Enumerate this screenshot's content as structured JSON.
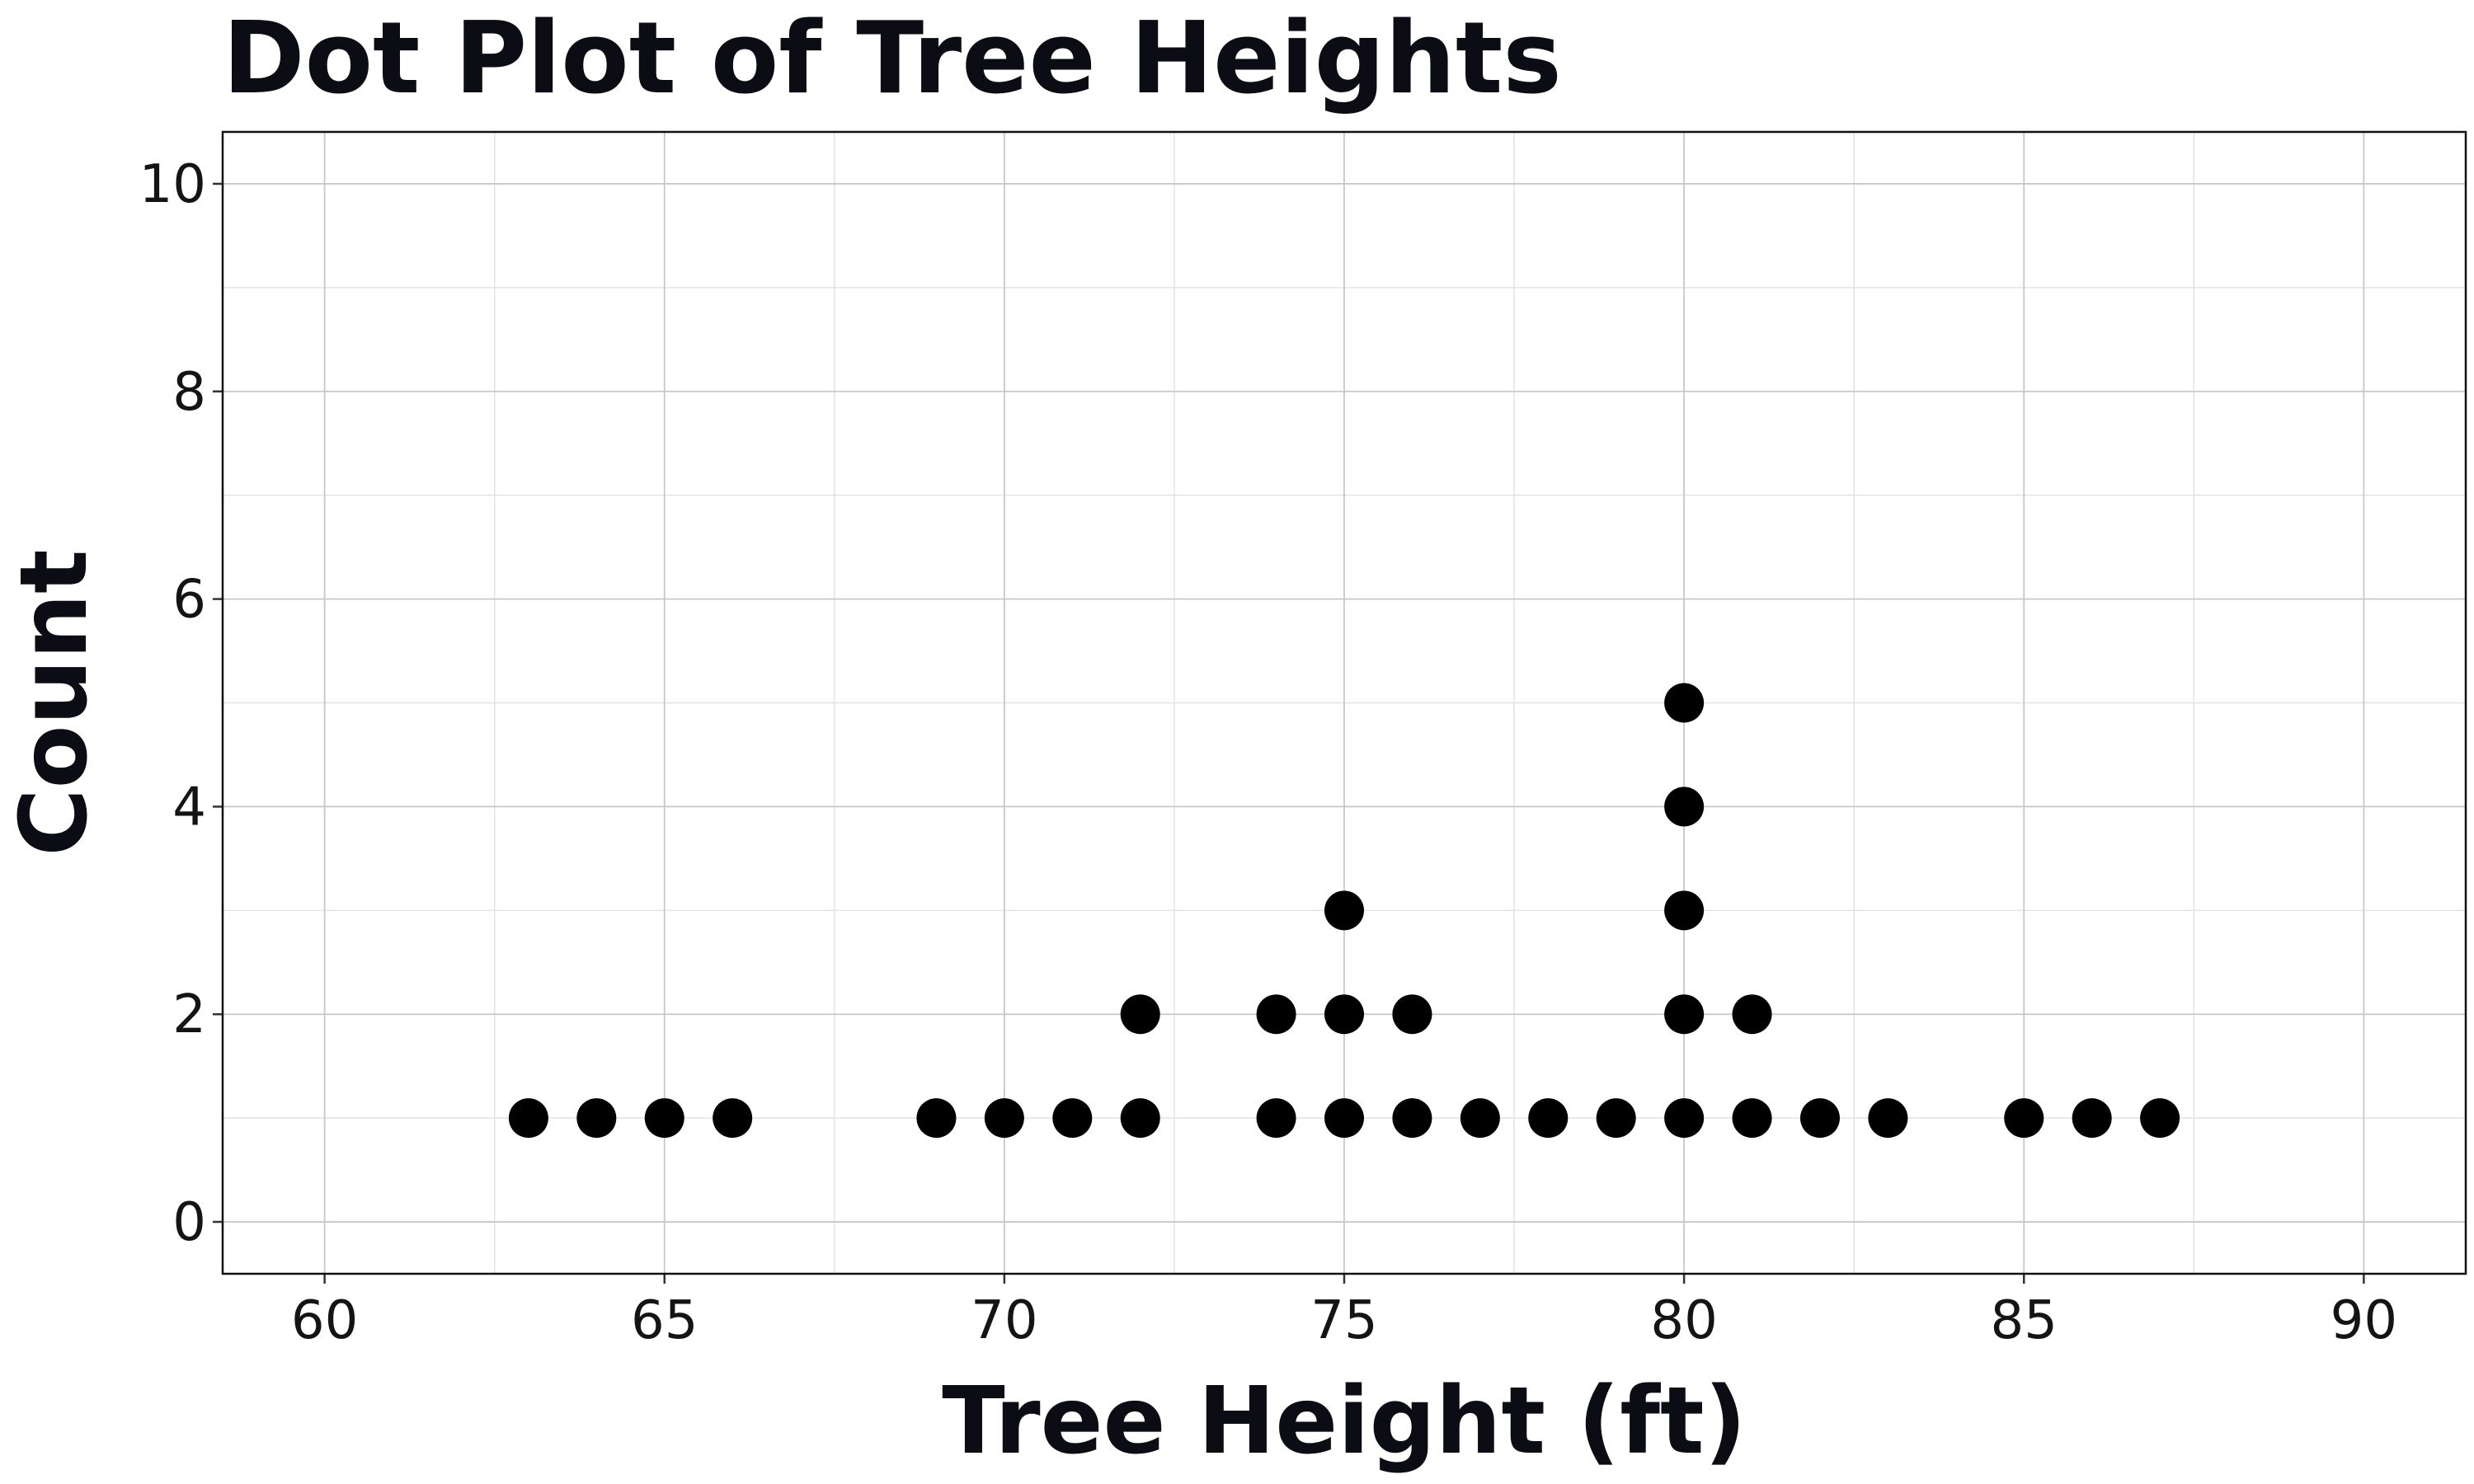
{
  "chart_data": {
    "type": "scatter",
    "subtype": "dot-plot",
    "title": "Dot Plot of Tree Heights",
    "xlabel": "Tree Height (ft)",
    "ylabel": "Count",
    "xlim": [
      58.5,
      91.5
    ],
    "ylim": [
      -0.5,
      10.5
    ],
    "x_ticks": [
      60,
      65,
      70,
      75,
      80,
      85,
      90
    ],
    "y_ticks": [
      0,
      2,
      4,
      6,
      8,
      10
    ],
    "grid": true,
    "legend": "none",
    "dot_color": "#000000",
    "points": [
      {
        "x": 63,
        "y": 1
      },
      {
        "x": 64,
        "y": 1
      },
      {
        "x": 65,
        "y": 1
      },
      {
        "x": 66,
        "y": 1
      },
      {
        "x": 69,
        "y": 1
      },
      {
        "x": 70,
        "y": 1
      },
      {
        "x": 71,
        "y": 1
      },
      {
        "x": 72,
        "y": 1
      },
      {
        "x": 72,
        "y": 2
      },
      {
        "x": 74,
        "y": 1
      },
      {
        "x": 74,
        "y": 2
      },
      {
        "x": 75,
        "y": 1
      },
      {
        "x": 75,
        "y": 2
      },
      {
        "x": 75,
        "y": 3
      },
      {
        "x": 76,
        "y": 1
      },
      {
        "x": 76,
        "y": 2
      },
      {
        "x": 77,
        "y": 1
      },
      {
        "x": 78,
        "y": 1
      },
      {
        "x": 79,
        "y": 1
      },
      {
        "x": 80,
        "y": 1
      },
      {
        "x": 80,
        "y": 2
      },
      {
        "x": 80,
        "y": 3
      },
      {
        "x": 80,
        "y": 4
      },
      {
        "x": 80,
        "y": 5
      },
      {
        "x": 81,
        "y": 1
      },
      {
        "x": 81,
        "y": 2
      },
      {
        "x": 82,
        "y": 1
      },
      {
        "x": 83,
        "y": 1
      },
      {
        "x": 85,
        "y": 1
      },
      {
        "x": 86,
        "y": 1
      },
      {
        "x": 87,
        "y": 1
      }
    ]
  }
}
